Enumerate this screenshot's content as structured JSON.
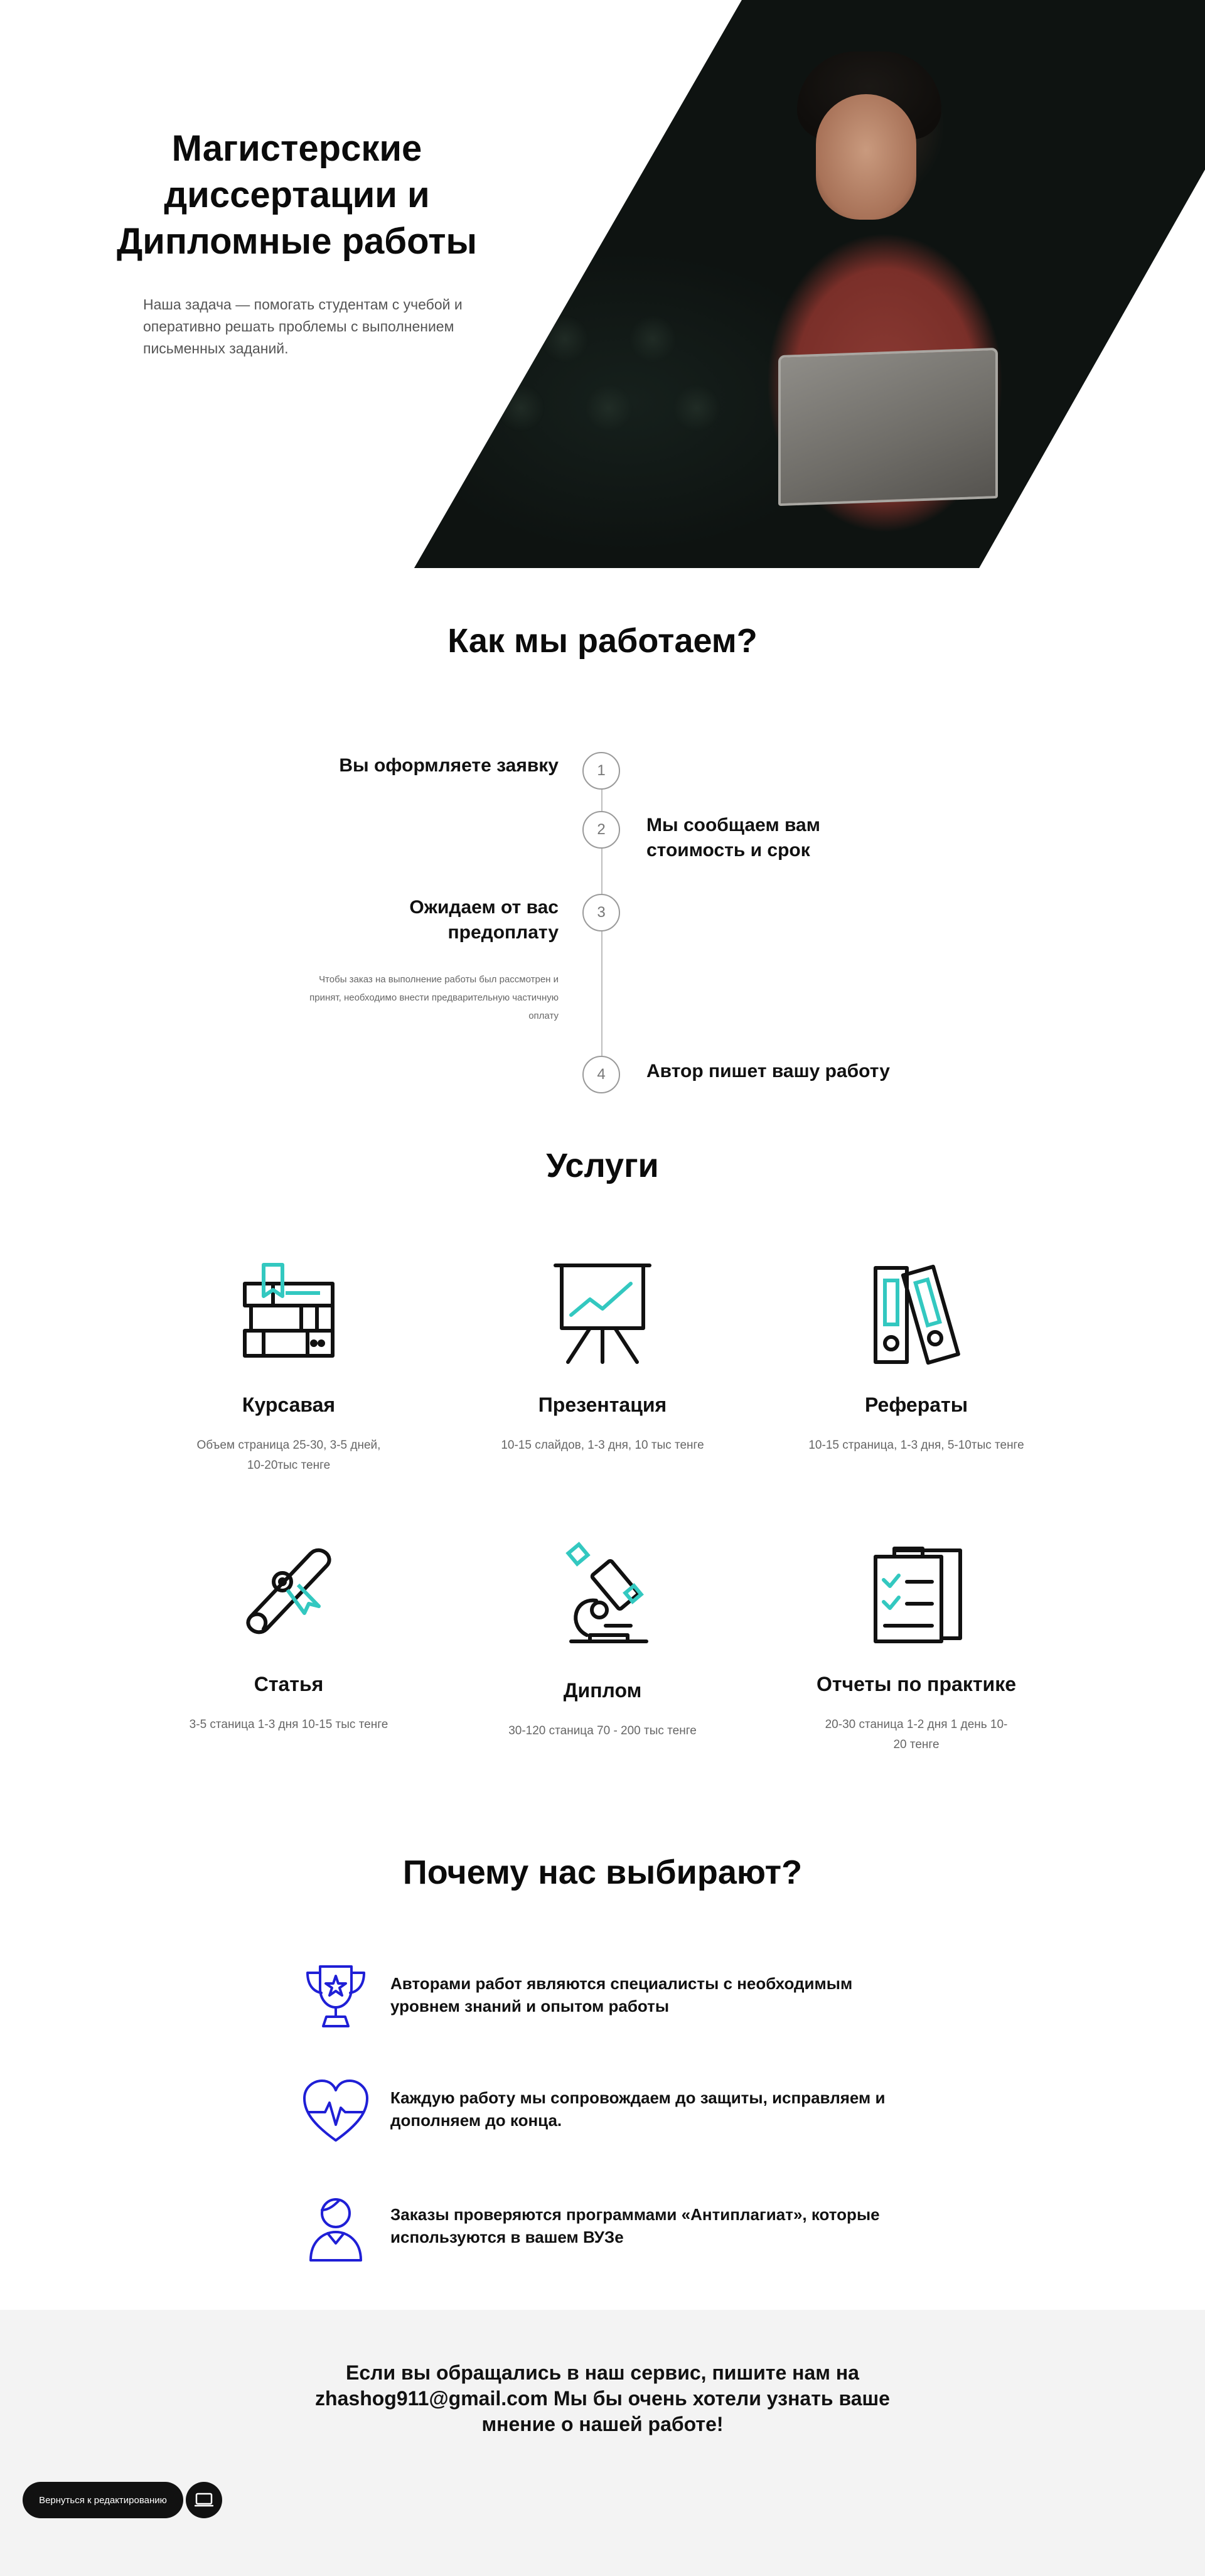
{
  "hero": {
    "title": "Магистерские диссертации и Дипломные работы",
    "subtitle": "Наша задача — помогать студентам с учебой и оперативно решать проблемы с выполнением письменных заданий."
  },
  "how_we_work": {
    "title": "Как мы работаем?",
    "steps": [
      {
        "number": "1",
        "label": "Вы оформляете заявку"
      },
      {
        "number": "2",
        "label": "Мы сообщаем вам стоимость и срок"
      },
      {
        "number": "3",
        "label": "Ожидаем от вас предоплату",
        "note": "Чтобы заказ на выполнение работы был рассмотрен и принят, необходимо внести предварительную частичную оплату"
      },
      {
        "number": "4",
        "label": "Автор пишет вашу работу"
      }
    ]
  },
  "services": {
    "title": "Услуги",
    "items": [
      {
        "name": "Курсавая",
        "desc": "Объем страница 25-30, 3-5 дней, 10-20тыс тенге",
        "icon": "books-icon"
      },
      {
        "name": "Презентация",
        "desc": "10-15 слайдов, 1-3 дня, 10 тыс тенге",
        "icon": "presentation-board-icon"
      },
      {
        "name": "Рефераты",
        "desc": "10-15 страница, 1-3 дня, 5-10тыс тенге",
        "icon": "binders-icon"
      },
      {
        "name": "Статья",
        "desc": "3-5 станица 1-3 дня 10-15 тыс тенге",
        "icon": "scroll-diploma-icon"
      },
      {
        "name": "Диплом",
        "desc": "30-120 станица  70 - 200 тыс тенге",
        "icon": "microscope-icon"
      },
      {
        "name": "Отчеты по практике",
        "desc": "20-30 станица 1-2 дня 1 день 10-20 тенге",
        "icon": "clipboard-checklist-icon"
      }
    ]
  },
  "why_us": {
    "title": "Почему нас выбирают?",
    "items": [
      {
        "text": "Авторами работ являются специалисты с необходимым уровнем знаний и опытом работы",
        "icon": "trophy-icon"
      },
      {
        "text": "Каждую работу мы сопровождаем до защиты, исправляем и дополняем до конца.",
        "icon": "heart-pulse-icon"
      },
      {
        "text": "Заказы проверяются программами «Антиплагиат», которые используются в вашем ВУЗе",
        "icon": "user-icon"
      }
    ]
  },
  "footer": {
    "text": "Если вы обращались в наш сервис, пишите нам на zhashog911@gmail.com Мы бы очень хотели узнать ваше мнение о нашей работе!"
  },
  "toolbar": {
    "edit_label": "Вернуться к редактированию"
  },
  "colors": {
    "accent_teal": "#33c8c0",
    "icon_blue": "#1f1fd6",
    "footer_bg": "#f3f3f3"
  }
}
